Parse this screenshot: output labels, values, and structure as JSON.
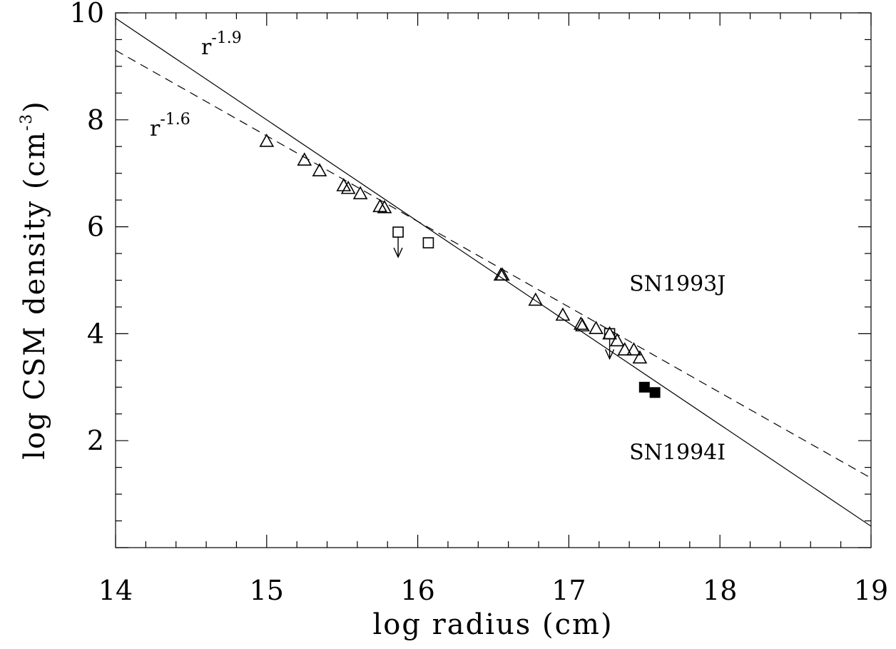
{
  "chart_data": {
    "type": "scatter",
    "xlabel": "log radius (cm)",
    "ylabel": "log CSM density (cm",
    "ylabel_exponent": "-3",
    "ylabel_suffix": ")",
    "xlim": [
      14,
      19
    ],
    "ylim": [
      0,
      10
    ],
    "x_ticks": [
      14,
      15,
      16,
      17,
      18,
      19
    ],
    "y_ticks": [
      2,
      4,
      6,
      8,
      10
    ],
    "grid": false,
    "series": [
      {
        "name": "SN1993J",
        "marker": "open-triangle",
        "points": [
          [
            15.0,
            7.6
          ],
          [
            15.25,
            7.25
          ],
          [
            15.35,
            7.05
          ],
          [
            15.51,
            6.77
          ],
          [
            15.54,
            6.72
          ],
          [
            15.62,
            6.62
          ],
          [
            15.75,
            6.38
          ],
          [
            15.78,
            6.36
          ],
          [
            16.55,
            5.1
          ],
          [
            16.56,
            5.1
          ],
          [
            16.78,
            4.63
          ],
          [
            16.96,
            4.35
          ],
          [
            17.08,
            4.18
          ],
          [
            17.09,
            4.15
          ],
          [
            17.18,
            4.1
          ],
          [
            17.27,
            4.0
          ],
          [
            17.32,
            3.87
          ],
          [
            17.37,
            3.7
          ],
          [
            17.43,
            3.7
          ],
          [
            17.47,
            3.55
          ]
        ]
      },
      {
        "name": "",
        "marker": "open-square",
        "points": [
          [
            16.07,
            5.7
          ]
        ]
      },
      {
        "name": "",
        "marker": "open-square-upper-limit",
        "points": [
          [
            15.87,
            5.9
          ],
          [
            17.27,
            4.0
          ]
        ]
      },
      {
        "name": "SN1994I",
        "marker": "filled-square",
        "points": [
          [
            17.5,
            3.0
          ],
          [
            17.57,
            2.9
          ]
        ]
      }
    ],
    "fits": [
      {
        "label_base": "r",
        "label_exponent": "-1.9",
        "slope": -1.9,
        "style": "solid",
        "through": [
          16.0,
          6.1
        ]
      },
      {
        "label_base": "r",
        "label_exponent": "-1.6",
        "slope": -1.6,
        "style": "dashed",
        "through": [
          16.0,
          6.1
        ]
      }
    ],
    "annotations": [
      {
        "text": "SN1993J",
        "x": 17.4,
        "y": 4.8
      },
      {
        "text": "SN1994I",
        "x": 17.4,
        "y": 1.65
      }
    ]
  }
}
